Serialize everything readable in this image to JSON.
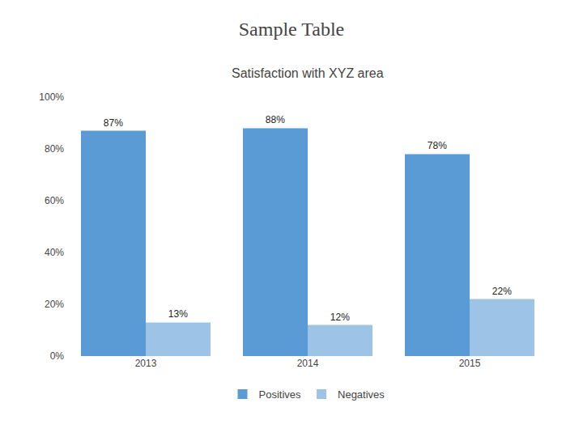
{
  "chart_data": {
    "type": "bar",
    "title": "Sample Table",
    "subtitle": "Satisfaction with XYZ area",
    "categories": [
      "2013",
      "2014",
      "2015"
    ],
    "series": [
      {
        "name": "Positives",
        "color": "#5B9BD5",
        "values": [
          87,
          88,
          78
        ],
        "value_labels": [
          "87%",
          "88%",
          "78%"
        ]
      },
      {
        "name": "Negatives",
        "color": "#9DC3E6",
        "values": [
          13,
          12,
          22
        ],
        "value_labels": [
          "13%",
          "12%",
          "22%"
        ]
      }
    ],
    "ylim": [
      0,
      100
    ],
    "yticks": [
      {
        "value": 0,
        "label": "0%"
      },
      {
        "value": 20,
        "label": "20%"
      },
      {
        "value": 40,
        "label": "40%"
      },
      {
        "value": 60,
        "label": "60%"
      },
      {
        "value": 80,
        "label": "80%"
      },
      {
        "value": 100,
        "label": "100%"
      }
    ],
    "grid": false,
    "legend": "bottom",
    "data_labels": true
  }
}
